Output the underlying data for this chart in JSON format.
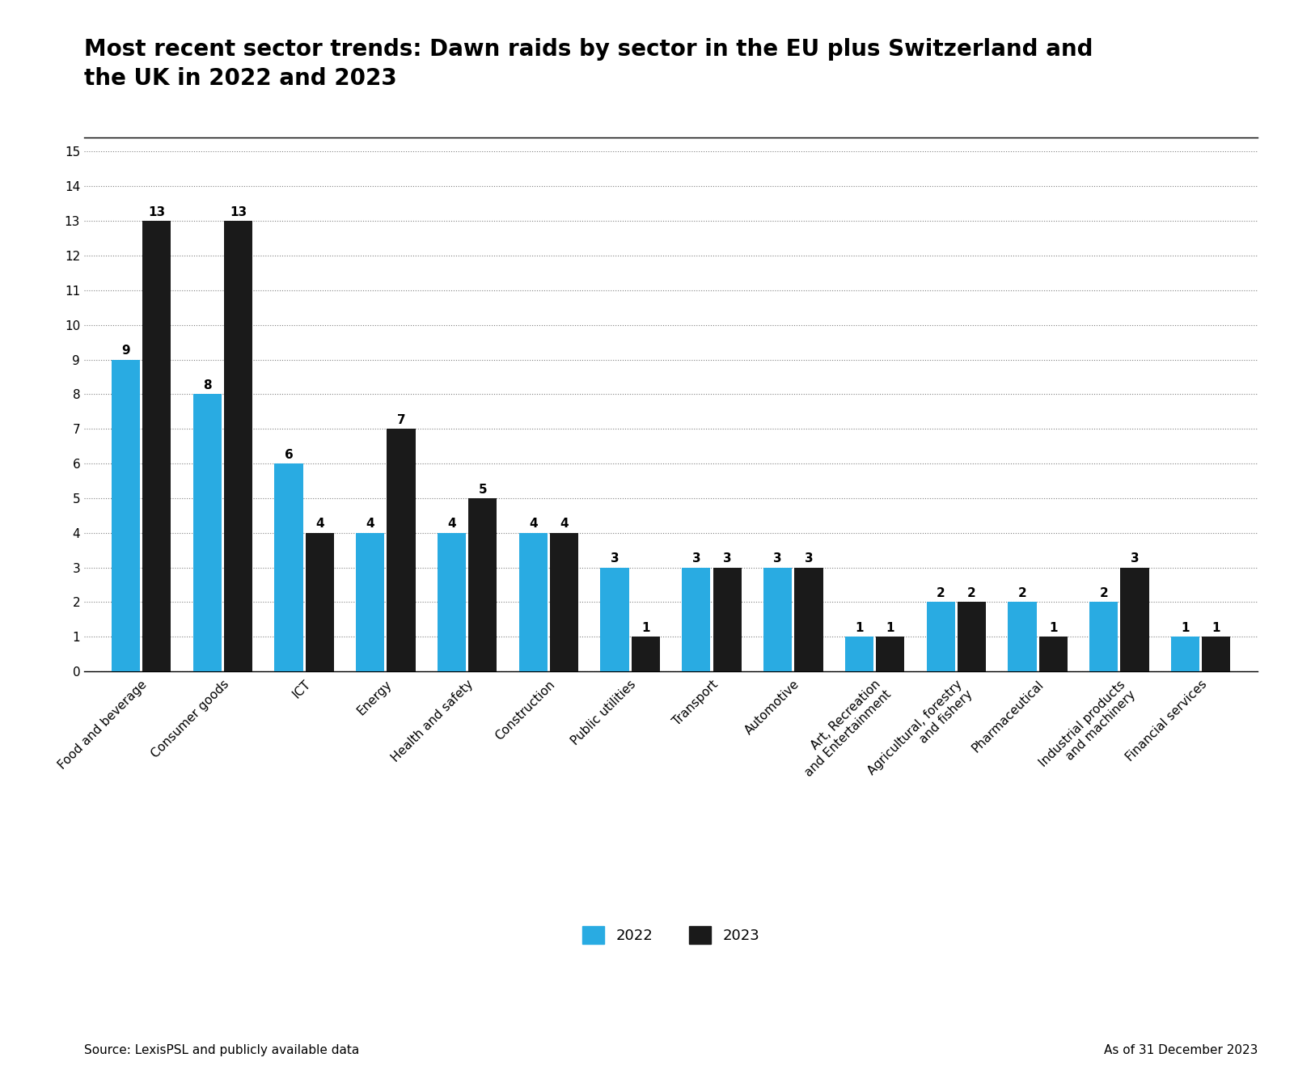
{
  "title": "Most recent sector trends: Dawn raids by sector in the EU plus Switzerland and\nthe UK in 2022 and 2023",
  "categories": [
    "Food and beverage",
    "Consumer goods",
    "ICT",
    "Energy",
    "Health and safety",
    "Construction",
    "Public utilities",
    "Transport",
    "Automotive",
    "Art, Recreation\nand Entertainment",
    "Agricultural, forestry\nand fishery",
    "Pharmaceutical",
    "Industrial products\nand machinery",
    "Financial services"
  ],
  "data_2022": [
    9,
    8,
    6,
    4,
    4,
    4,
    3,
    3,
    3,
    1,
    2,
    2,
    2,
    1
  ],
  "data_2023": [
    13,
    13,
    4,
    7,
    5,
    4,
    1,
    3,
    3,
    1,
    2,
    1,
    3,
    1
  ],
  "color_2022": "#29ABE2",
  "color_2023": "#1a1a1a",
  "ylim": [
    0,
    15
  ],
  "yticks": [
    0,
    1,
    2,
    3,
    4,
    5,
    6,
    7,
    8,
    9,
    10,
    11,
    12,
    13,
    14,
    15
  ],
  "source_text": "Source: LexisPSL and publicly available data",
  "date_text": "As of 31 December 2023",
  "legend_2022": "2022",
  "legend_2023": "2023"
}
